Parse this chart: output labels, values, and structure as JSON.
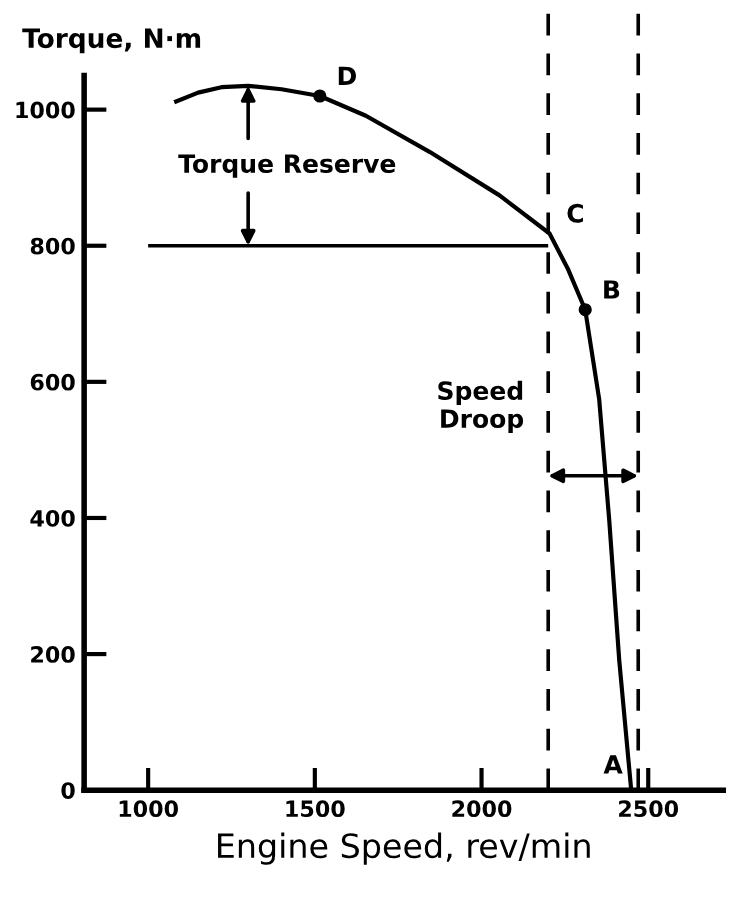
{
  "chart_data": {
    "type": "line",
    "xlabel": "Engine Speed, rev/min",
    "ylabel": "Torque, N·m",
    "series": [
      {
        "color": "#000000",
        "x": [
          1084,
          1150,
          1220,
          1300,
          1400,
          1515,
          1653,
          1844,
          2054,
          2204,
          2260,
          2311,
          2353,
          2383,
          2413,
          2449
        ],
        "values": [
          1012,
          1025,
          1033,
          1035,
          1030,
          1020,
          991,
          938,
          874,
          818,
          765,
          706,
          574,
          397,
          191,
          0
        ]
      },
      {
        "type": "scatter",
        "color": "#000000",
        "x": [
          1515,
          2311
        ],
        "values": [
          1020,
          706
        ]
      }
    ],
    "xlim": [
      808,
      2725
    ],
    "ylim": [
      0,
      1050
    ],
    "xticks": [
      1000,
      1500,
      2000,
      2500
    ],
    "yticks": [
      0,
      200,
      400,
      600,
      800,
      1000
    ],
    "ref_lines": [
      {
        "axis": "x",
        "value": 2200,
        "line_style": "dashed",
        "color": "#000000"
      },
      {
        "axis": "x",
        "value": 2470,
        "line_style": "dashed",
        "color": "#000000"
      },
      {
        "axis": "y",
        "value": 800,
        "line_style": "solid",
        "color": "#000000"
      }
    ],
    "annotations": [
      {
        "text": "D",
        "x": 1515,
        "y": 1020
      },
      {
        "text": "C",
        "x": 2204,
        "y": 818
      },
      {
        "text": "B",
        "x": 2311,
        "y": 706
      },
      {
        "text": "A",
        "x": 2449,
        "y": 0
      },
      {
        "text": "Torque Reserve",
        "x": 1300,
        "y": 1035
      },
      "Speed\nDroop"
    ],
    "grid": false,
    "legend": false
  }
}
